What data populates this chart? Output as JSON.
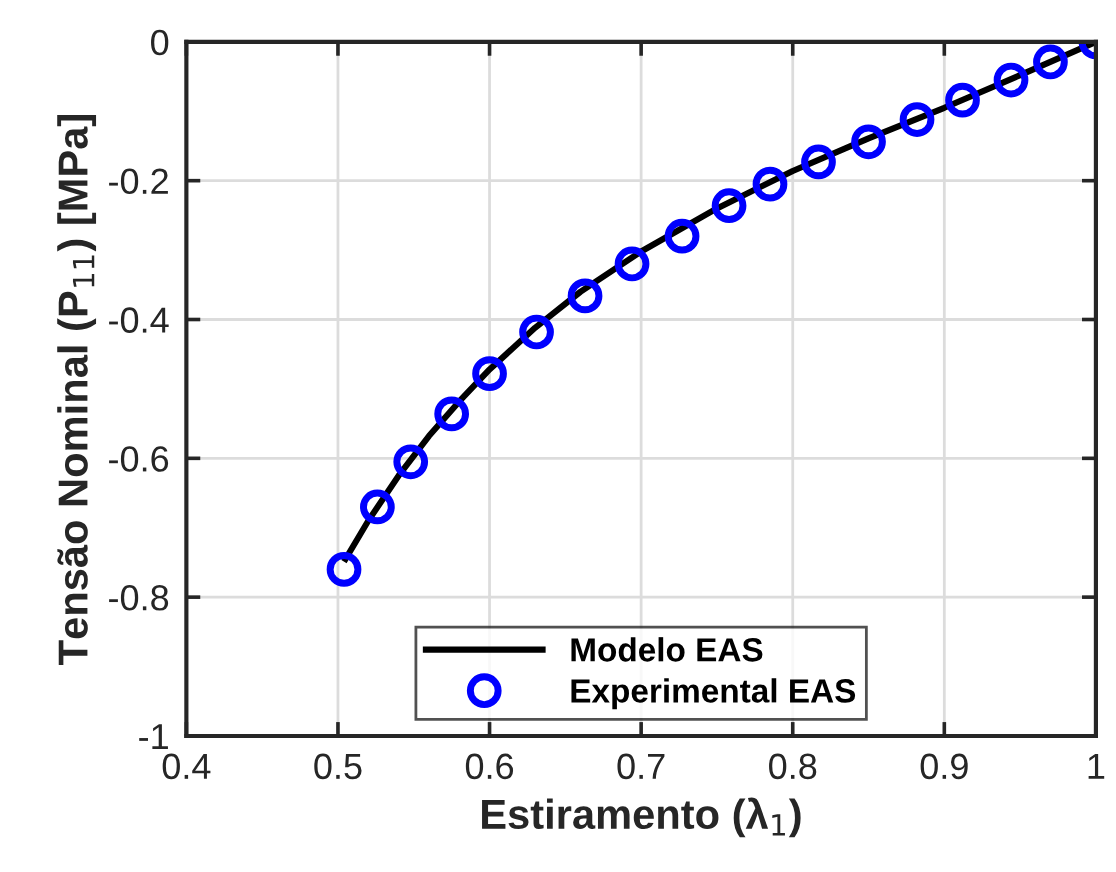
{
  "chart_data": {
    "type": "line",
    "xlabel": "Estiramento (λ$_{1}$)",
    "ylabel": "Tensão Nominal (P$_{11}$) [MPa]",
    "xlim": [
      0.4,
      1
    ],
    "xticks": [
      0.4,
      0.5,
      0.6,
      0.7,
      0.8,
      0.9,
      1
    ],
    "ylim": [
      -1,
      0
    ],
    "yticks": [
      -1,
      -0.8,
      -0.6,
      -0.4,
      -0.2,
      0
    ],
    "grid": true,
    "legend": "bottom",
    "series": [
      {
        "name": "Modelo EAS",
        "color": "#000000",
        "marker": "none",
        "line_style": "solid",
        "x": [
          0.505,
          0.52,
          0.54,
          0.56,
          0.58,
          0.6,
          0.63,
          0.66,
          0.7,
          0.75,
          0.8,
          0.85,
          0.9,
          0.95,
          1.0
        ],
        "values": [
          -0.745,
          -0.69,
          -0.625,
          -0.568,
          -0.518,
          -0.472,
          -0.412,
          -0.36,
          -0.302,
          -0.24,
          -0.186,
          -0.139,
          -0.095,
          -0.048,
          0
        ]
      },
      {
        "name": "Experimental EAS",
        "type": "scatter",
        "color": "#0000ff",
        "marker": "circle",
        "x": [
          0.504,
          0.526,
          0.548,
          0.575,
          0.6,
          0.631,
          0.663,
          0.694,
          0.727,
          0.758,
          0.785,
          0.817,
          0.85,
          0.882,
          0.912,
          0.944,
          0.97,
          1.0
        ],
        "values": [
          -0.76,
          -0.67,
          -0.605,
          -0.536,
          -0.478,
          -0.418,
          -0.366,
          -0.32,
          -0.28,
          -0.236,
          -0.205,
          -0.173,
          -0.144,
          -0.112,
          -0.084,
          -0.055,
          -0.029,
          0
        ]
      }
    ]
  }
}
